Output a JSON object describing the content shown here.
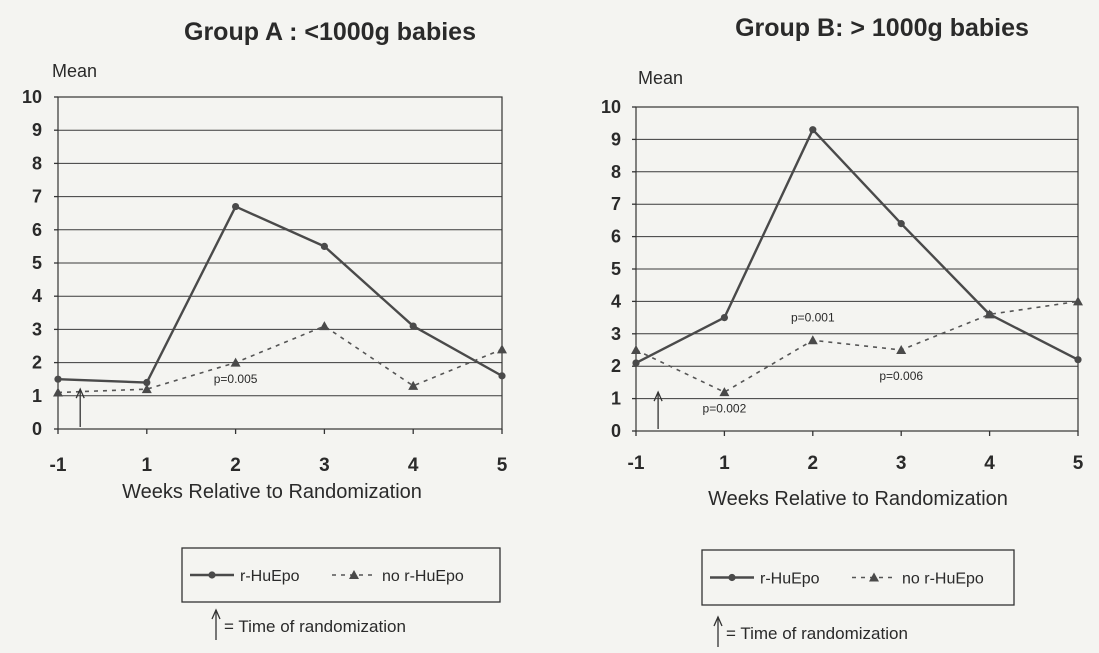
{
  "chart_data": [
    {
      "type": "line",
      "title": "Group A : <1000g babies",
      "ylabel": "Mean",
      "xlabel": "Weeks Relative to Randomization",
      "categories": [
        "-1",
        "1",
        "2",
        "3",
        "4",
        "5"
      ],
      "yticks": [
        "0",
        "1",
        "2",
        "3",
        "4",
        "5",
        "6",
        "7",
        "8",
        "9",
        "10"
      ],
      "ylim": [
        0,
        10
      ],
      "grid": true,
      "series": [
        {
          "name": "r-HuEpo",
          "style": "solid-circle",
          "values": [
            1.5,
            1.4,
            6.7,
            5.5,
            3.1,
            1.6
          ]
        },
        {
          "name": "no r-HuEpo",
          "style": "dashed-triangle",
          "values": [
            1.1,
            1.2,
            2.0,
            3.1,
            1.3,
            2.4
          ]
        }
      ],
      "annotations": [
        {
          "text": "p=0.005",
          "x": "2",
          "y": 1.5
        }
      ],
      "randomization_marker_x": -0.5,
      "legend_position": "bottom",
      "legend_note": "= Time of randomization"
    },
    {
      "type": "line",
      "title": "Group B: > 1000g babies",
      "ylabel": "Mean",
      "xlabel": "Weeks Relative to Randomization",
      "categories": [
        "-1",
        "1",
        "2",
        "3",
        "4",
        "5"
      ],
      "yticks": [
        "0",
        "1",
        "2",
        "3",
        "4",
        "5",
        "6",
        "7",
        "8",
        "9",
        "10"
      ],
      "ylim": [
        0,
        10
      ],
      "grid": true,
      "series": [
        {
          "name": "r-HuEpo",
          "style": "solid-circle",
          "values": [
            2.1,
            3.5,
            9.3,
            6.4,
            3.6,
            2.2
          ]
        },
        {
          "name": "no r-HuEpo",
          "style": "dashed-triangle",
          "values": [
            2.5,
            1.2,
            2.8,
            2.5,
            3.6,
            4.0
          ]
        }
      ],
      "annotations": [
        {
          "text": "p=0.001",
          "x": "2",
          "y": 3.5
        },
        {
          "text": "p=0.002",
          "x": "1",
          "y": 0.7
        },
        {
          "text": "p=0.006",
          "x": "3",
          "y": 1.7
        }
      ],
      "randomization_marker_x": -0.5,
      "legend_position": "bottom",
      "legend_note": "= Time of randomization"
    }
  ]
}
